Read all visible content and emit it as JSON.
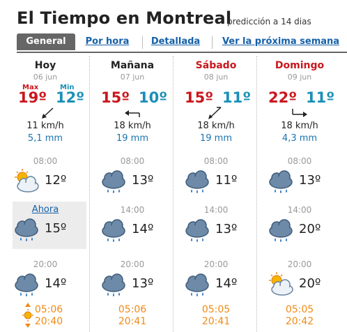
{
  "header": {
    "title": "El Tiempo en Montreal",
    "subtitle": "predicción a 14 dias"
  },
  "tabs": [
    {
      "label": "General",
      "active": true
    },
    {
      "label": "Por hora"
    },
    {
      "label": "Detallada"
    },
    {
      "label": "Ver la próxima semana"
    }
  ],
  "labels": {
    "max": "Max",
    "min": "Min"
  },
  "days": [
    {
      "name": "Hoy",
      "date": "06 jun",
      "max": "19º",
      "min": "12º",
      "wind_speed": "11 km/h",
      "rain": "5,1 mm",
      "slots": [
        {
          "time": "08:00",
          "temp": "12º",
          "icon": "partly-cloudy-icon"
        },
        {
          "time": "Ahora",
          "temp": "15º",
          "icon": "rain-cloud-icon"
        },
        {
          "time": "20:00",
          "temp": "14º",
          "icon": "rain-cloud-icon"
        }
      ],
      "sunrise": "05:06",
      "sunset": "20:40"
    },
    {
      "name": "Mañana",
      "date": "07 jun",
      "max": "15º",
      "min": "10º",
      "wind_speed": "18 km/h",
      "rain": "19 mm",
      "slots": [
        {
          "time": "08:00",
          "temp": "13º",
          "icon": "rain-cloud-icon"
        },
        {
          "time": "14:00",
          "temp": "14º",
          "icon": "rain-cloud-icon"
        },
        {
          "time": "20:00",
          "temp": "13º",
          "icon": "rain-cloud-icon"
        }
      ],
      "sunrise": "05:06",
      "sunset": "20:41"
    },
    {
      "name": "Sábado",
      "date": "08 jun",
      "max": "15º",
      "min": "11º",
      "wind_speed": "18 km/h",
      "rain": "19 mm",
      "slots": [
        {
          "time": "08:00",
          "temp": "11º",
          "icon": "rain-cloud-icon"
        },
        {
          "time": "14:00",
          "temp": "13º",
          "icon": "rain-cloud-icon"
        },
        {
          "time": "20:00",
          "temp": "14º",
          "icon": "rain-cloud-icon"
        }
      ],
      "sunrise": "05:05",
      "sunset": "20:41"
    },
    {
      "name": "Domingo",
      "date": "09 jun",
      "max": "22º",
      "min": "11º",
      "wind_speed": "18 km/h",
      "rain": "4,3 mm",
      "slots": [
        {
          "time": "08:00",
          "temp": "13º",
          "icon": "rain-cloud-icon"
        },
        {
          "time": "14:00",
          "temp": "20º",
          "icon": "rain-cloud-icon"
        },
        {
          "time": "20:00",
          "temp": "20º",
          "icon": "partly-cloudy-icon"
        }
      ],
      "sunrise": "05:05",
      "sunset": "20:42"
    }
  ]
}
